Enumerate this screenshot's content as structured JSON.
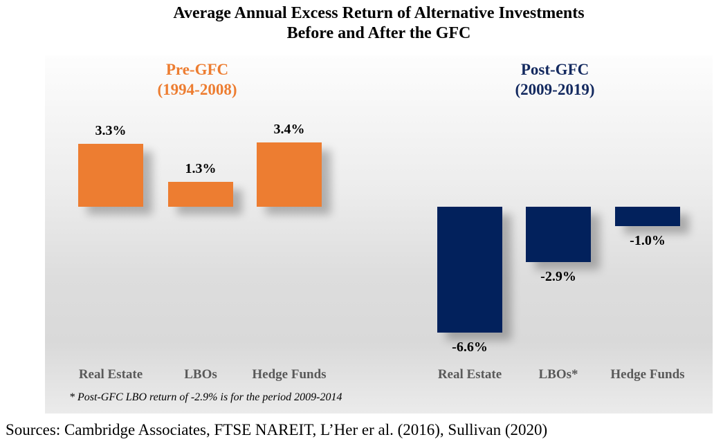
{
  "title": {
    "line1": "Average Annual Excess Return of Alternative Investments",
    "line2": "Before and After the GFC"
  },
  "group_headers": [
    {
      "name": "Pre-GFC",
      "period": "(1994-2008)",
      "color": "#ED7D31"
    },
    {
      "name": "Post-GFC",
      "period": "(2009-2019)",
      "color": "#13295F"
    }
  ],
  "footnote": "* Post-GFC LBO return of -2.9% is for the period 2009-2014",
  "sources": "Sources: Cambridge Associates, FTSE NAREIT, L’Her er al. (2016), Sullivan (2020)",
  "colors": {
    "pre_bar": "#ED7D31",
    "post_bar": "#02215C",
    "category_label": "#595959",
    "value_label": "#000000"
  },
  "chart_data": {
    "type": "bar",
    "title": "Average Annual Excess Return of Alternative Investments Before and After the GFC",
    "baseline": 0,
    "grid": false,
    "legend": false,
    "ylim": [
      -7,
      4
    ],
    "groups": [
      {
        "name": "Pre-GFC",
        "period": "1994-2008",
        "color": "#ED7D31",
        "categories": [
          "Real Estate",
          "LBOs",
          "Hedge Funds"
        ],
        "values": [
          3.3,
          1.3,
          3.4
        ],
        "labels": [
          "3.3%",
          "1.3%",
          "3.4%"
        ]
      },
      {
        "name": "Post-GFC",
        "period": "2009-2019",
        "color": "#02215C",
        "categories": [
          "Real Estate",
          "LBOs*",
          "Hedge Funds"
        ],
        "values": [
          -6.6,
          -2.9,
          -1.0
        ],
        "labels": [
          "-6.6%",
          "-2.9%",
          "-1.0%"
        ]
      }
    ]
  }
}
